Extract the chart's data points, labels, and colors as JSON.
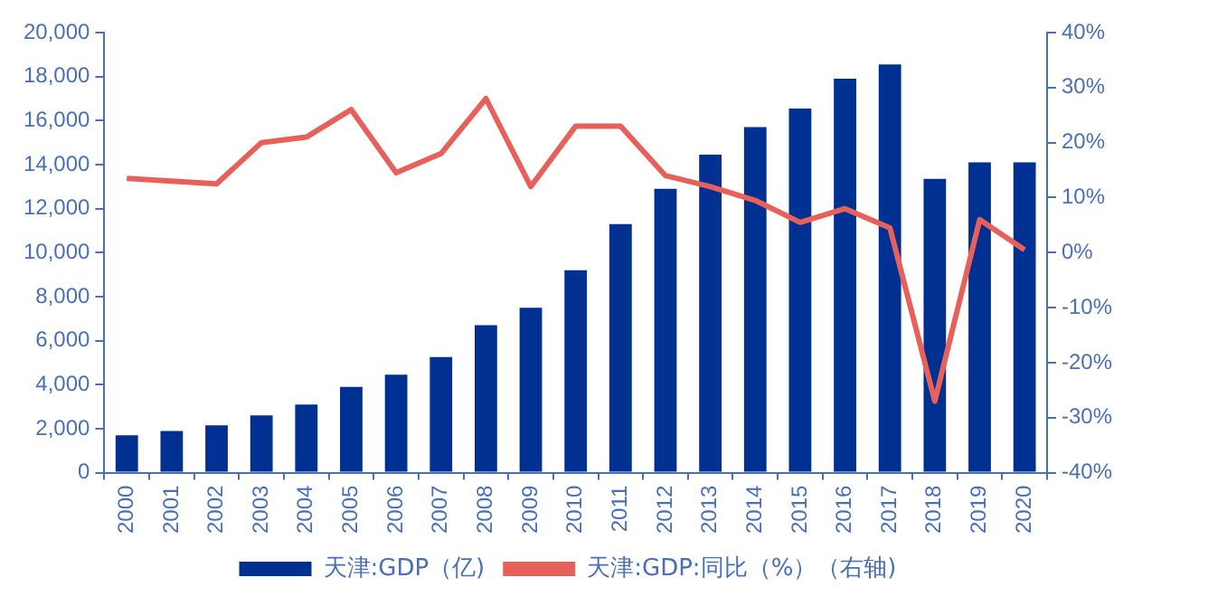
{
  "chart_data": {
    "type": "bar",
    "categories": [
      "2000",
      "2001",
      "2002",
      "2003",
      "2004",
      "2005",
      "2006",
      "2007",
      "2008",
      "2009",
      "2010",
      "2011",
      "2012",
      "2013",
      "2014",
      "2015",
      "2016",
      "2017",
      "2018",
      "2019",
      "2020"
    ],
    "series": [
      {
        "name": "天津:GDP（亿)",
        "color": "#003192",
        "values": [
          1700,
          1900,
          2150,
          2600,
          3100,
          3900,
          4450,
          5250,
          6700,
          7500,
          9200,
          11300,
          12900,
          14450,
          15700,
          16550,
          17900,
          18550,
          13350,
          14100,
          14100
        ]
      },
      {
        "name": "天津:GDP:同比（%）（右轴)",
        "type": "line",
        "axis": "y2",
        "color": "#e8605a",
        "values": [
          13.5,
          13,
          12.5,
          20,
          21,
          26,
          14.5,
          18,
          28,
          12,
          23,
          23,
          14,
          12,
          9.5,
          5.5,
          8,
          4.5,
          -27,
          6,
          0.5
        ]
      }
    ],
    "ylim": [
      0,
      20000
    ],
    "yticks": [
      0,
      {
        "value": 2000,
        "label": "2,000"
      },
      {
        "value": 4000,
        "label": "4,000"
      },
      {
        "value": 6000,
        "label": "6,000"
      },
      {
        "value": 8000,
        "label": "8,000"
      },
      {
        "value": 10000,
        "label": "10,000"
      },
      {
        "value": 12000,
        "label": "12,000"
      },
      {
        "value": 14000,
        "label": "14,000"
      },
      {
        "value": 16000,
        "label": "16,000"
      },
      {
        "value": 18000,
        "label": "18,000"
      },
      {
        "value": 20000,
        "label": "20,000"
      }
    ],
    "y2lim": [
      -40,
      40
    ],
    "y2ticks": [
      {
        "value": -40,
        "label": "-40%"
      },
      {
        "value": -30,
        "label": "-30%"
      },
      {
        "value": -20,
        "label": "-20%"
      },
      {
        "value": -10,
        "label": "-10%"
      },
      {
        "value": 0,
        "label": "0%"
      },
      {
        "value": 10,
        "label": "10%"
      },
      {
        "value": 20,
        "label": "20%"
      },
      {
        "value": 30,
        "label": "30%"
      },
      {
        "value": 40,
        "label": "40%"
      }
    ],
    "grid": false,
    "legend": "bottom",
    "marker": "none"
  }
}
